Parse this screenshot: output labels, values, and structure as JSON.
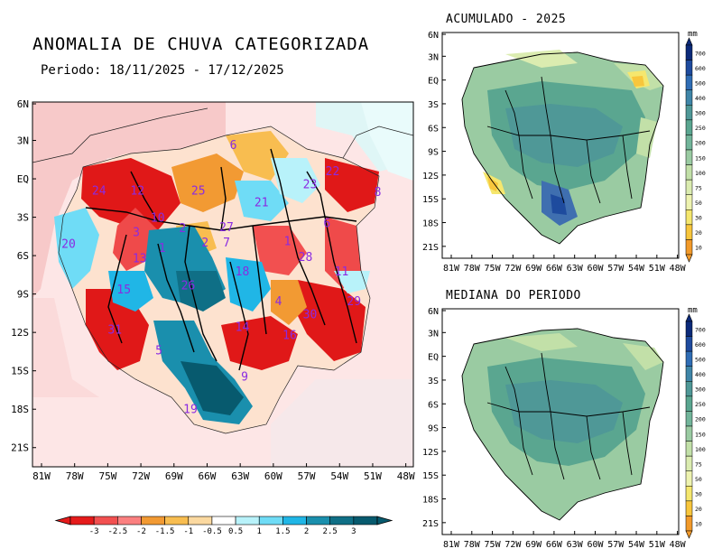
{
  "main_map": {
    "title": "ANOMALIA DE CHUVA CATEGORIZADA",
    "period": "Periodo: 18/11/2025 - 17/12/2025",
    "lat_labels": [
      "6N",
      "3N",
      "EQ",
      "3S",
      "6S",
      "9S",
      "12S",
      "15S",
      "18S",
      "21S"
    ],
    "lon_labels": [
      "81W",
      "78W",
      "75W",
      "72W",
      "69W",
      "66W",
      "63W",
      "60W",
      "57W",
      "54W",
      "51W",
      "48W"
    ],
    "basins": [
      {
        "id": "6",
        "lon": -64.0,
        "lat": 2.8
      },
      {
        "id": "22",
        "lon": -55.2,
        "lat": 0.8
      },
      {
        "id": "24",
        "lon": -75.9,
        "lat": -0.7
      },
      {
        "id": "12",
        "lon": -72.5,
        "lat": -0.7
      },
      {
        "id": "25",
        "lon": -67.1,
        "lat": -0.7
      },
      {
        "id": "23",
        "lon": -57.2,
        "lat": -0.2
      },
      {
        "id": "21",
        "lon": -61.5,
        "lat": -1.6
      },
      {
        "id": "8",
        "lon": -51.2,
        "lat": -0.8
      },
      {
        "id": "10",
        "lon": -70.7,
        "lat": -2.8
      },
      {
        "id": "3",
        "lon": -72.6,
        "lat": -3.9
      },
      {
        "id": "2",
        "lon": -68.5,
        "lat": -3.6
      },
      {
        "id": "27",
        "lon": -64.6,
        "lat": -3.5
      },
      {
        "id": "6",
        "lon": -55.7,
        "lat": -3.2
      },
      {
        "id": "20",
        "lon": -78.6,
        "lat": -4.8
      },
      {
        "id": "1",
        "lon": -70.3,
        "lat": -5.1
      },
      {
        "id": "2",
        "lon": -66.5,
        "lat": -4.7
      },
      {
        "id": "7",
        "lon": -64.6,
        "lat": -4.7
      },
      {
        "id": "1",
        "lon": -59.2,
        "lat": -4.6
      },
      {
        "id": "13",
        "lon": -72.3,
        "lat": -5.9
      },
      {
        "id": "28",
        "lon": -57.6,
        "lat": -5.8
      },
      {
        "id": "18",
        "lon": -63.2,
        "lat": -6.9
      },
      {
        "id": "11",
        "lon": -54.4,
        "lat": -6.9
      },
      {
        "id": "15",
        "lon": -73.7,
        "lat": -8.3
      },
      {
        "id": "26",
        "lon": -68.0,
        "lat": -8.0
      },
      {
        "id": "4",
        "lon": -60.0,
        "lat": -9.2
      },
      {
        "id": "29",
        "lon": -53.3,
        "lat": -9.2
      },
      {
        "id": "30",
        "lon": -57.2,
        "lat": -10.2
      },
      {
        "id": "14",
        "lon": -63.2,
        "lat": -11.2
      },
      {
        "id": "31",
        "lon": -74.5,
        "lat": -11.4
      },
      {
        "id": "16",
        "lon": -59.0,
        "lat": -11.8
      },
      {
        "id": "5",
        "lon": -70.6,
        "lat": -13.0
      },
      {
        "id": "9",
        "lon": -63.0,
        "lat": -15.0
      },
      {
        "id": "19",
        "lon": -67.8,
        "lat": -17.5
      }
    ],
    "colorbar": {
      "labels": [
        "-3",
        "-2.5",
        "-2",
        "-1.5",
        "-1",
        "-0.5",
        "0.5",
        "1",
        "1.5",
        "2",
        "2.5",
        "3"
      ],
      "colors": [
        "#e51b1b",
        "#f25050",
        "#fb8080",
        "#f29a33",
        "#f8bd50",
        "#fbd9a0",
        "#ffffff",
        "#b8f2fa",
        "#6fdcf6",
        "#20b6e6",
        "#1a8fad",
        "#0f6f86",
        "#075a6e"
      ]
    }
  },
  "acumulado": {
    "title": "ACUMULADO - 2025",
    "lat_labels": [
      "6N",
      "3N",
      "EQ",
      "3S",
      "6S",
      "9S",
      "12S",
      "15S",
      "18S",
      "21S"
    ],
    "lon_labels": [
      "81W",
      "78W",
      "75W",
      "72W",
      "69W",
      "66W",
      "63W",
      "60W",
      "57W",
      "54W",
      "51W",
      "48W"
    ]
  },
  "mediana": {
    "title": "MEDIANA DO PERIODO",
    "lat_labels": [
      "6N",
      "3N",
      "EQ",
      "3S",
      "6S",
      "9S",
      "12S",
      "15S",
      "18S",
      "21S"
    ],
    "lon_labels": [
      "81W",
      "78W",
      "75W",
      "72W",
      "69W",
      "66W",
      "63W",
      "60W",
      "57W",
      "54W",
      "51W",
      "48W"
    ]
  },
  "mm_scale": {
    "unit": "mm",
    "labels": [
      "700",
      "600",
      "500",
      "400",
      "300",
      "250",
      "200",
      "150",
      "100",
      "75",
      "50",
      "30",
      "20",
      "10"
    ],
    "colors": [
      "#0c2a7a",
      "#1e4b9e",
      "#2f6db5",
      "#3f86a8",
      "#4f9897",
      "#5aa690",
      "#72b59a",
      "#9acba2",
      "#c2e0a8",
      "#dbecb0",
      "#eef3b0",
      "#f5e76e",
      "#f8c63c",
      "#f29a2a"
    ]
  }
}
